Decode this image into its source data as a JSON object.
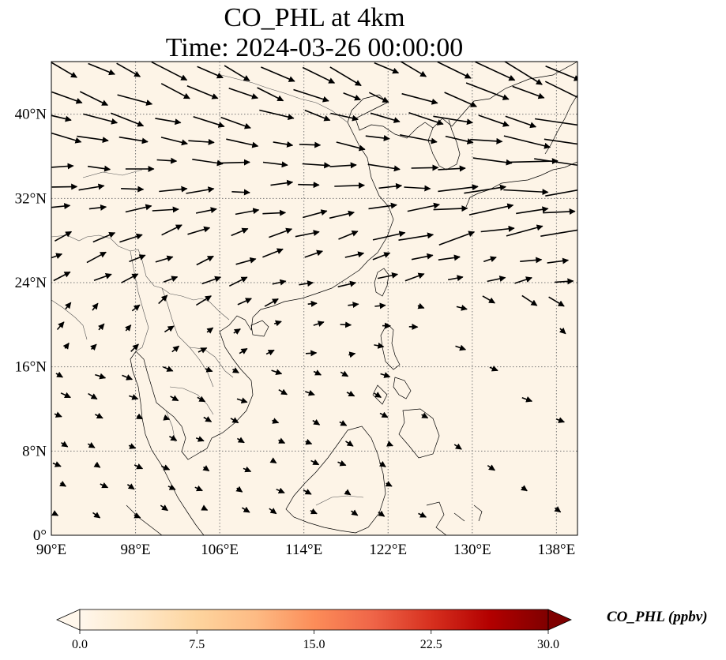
{
  "title": {
    "line1": "CO_PHL at 4km",
    "line2": "Time: 2024-03-26 00:00:00"
  },
  "map": {
    "projection": "PlateCarree",
    "lon_range": [
      90,
      140
    ],
    "lat_range": [
      0,
      45
    ],
    "gridlines": "dotted",
    "x_ticks": [
      "90°E",
      "98°E",
      "106°E",
      "114°E",
      "122°E",
      "130°E",
      "138°E"
    ],
    "y_ticks": [
      "0°",
      "8°N",
      "16°N",
      "24°N",
      "32°N",
      "40°N"
    ],
    "background_fill": "#fdf4e7",
    "coastline_color": "#000000",
    "border_color": "#555555",
    "vector_color": "#000000",
    "vectors": "wind vectors (black arrows)"
  },
  "colorbar": {
    "label": "CO_PHL (ppbv)",
    "ticks": [
      "0.0",
      "7.5",
      "15.0",
      "22.5",
      "30.0"
    ],
    "range": [
      0,
      30
    ],
    "colormap": "OrRd",
    "extend": "both",
    "colors": [
      "#fff7ec",
      "#fee8c8",
      "#fdd49e",
      "#fdbb84",
      "#fc8d59",
      "#ef6548",
      "#d7301f",
      "#b30000",
      "#7f0000"
    ]
  }
}
